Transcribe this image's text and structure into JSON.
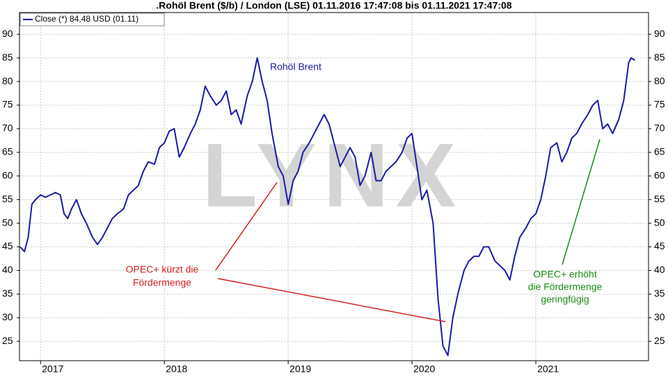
{
  "chart_data": {
    "type": "line",
    "title": ".Rohöl Brent ($/b) / London (LSE) 01.11.2016 17:47:08 bis 01.11.2021 17:47:08",
    "watermark": "LYNX",
    "annotations": [
      {
        "lines": [
          "Rohöl Brent"
        ],
        "color": "#1a1aa6"
      },
      {
        "lines": [
          "OPEC+ kürzt die",
          "Fördermenge"
        ],
        "color": "#d42020"
      },
      {
        "lines": [
          "OPEC+ erhöht",
          "die Fördermenge",
          "geringfügig"
        ],
        "color": "#1a8a1a"
      }
    ],
    "x": [
      2016.835,
      2016.87,
      2016.9,
      2016.93,
      2016.96,
      2017.0,
      2017.04,
      2017.08,
      2017.12,
      2017.16,
      2017.19,
      2017.22,
      2017.25,
      2017.29,
      2017.33,
      2017.37,
      2017.42,
      2017.46,
      2017.5,
      2017.54,
      2017.58,
      2017.62,
      2017.67,
      2017.71,
      2017.75,
      2017.79,
      2017.83,
      2017.87,
      2017.92,
      2017.96,
      2018.0,
      2018.04,
      2018.08,
      2018.12,
      2018.16,
      2018.21,
      2018.25,
      2018.29,
      2018.33,
      2018.37,
      2018.42,
      2018.46,
      2018.5,
      2018.54,
      2018.58,
      2018.62,
      2018.67,
      2018.71,
      2018.75,
      2018.79,
      2018.83,
      2018.87,
      2018.92,
      2018.96,
      2019.0,
      2019.04,
      2019.08,
      2019.12,
      2019.17,
      2019.21,
      2019.25,
      2019.29,
      2019.33,
      2019.37,
      2019.42,
      2019.46,
      2019.5,
      2019.54,
      2019.58,
      2019.62,
      2019.67,
      2019.71,
      2019.75,
      2019.79,
      2019.83,
      2019.87,
      2019.92,
      2019.96,
      2020.0,
      2020.04,
      2020.08,
      2020.12,
      2020.17,
      2020.21,
      2020.25,
      2020.29,
      2020.33,
      2020.37,
      2020.42,
      2020.46,
      2020.5,
      2020.54,
      2020.58,
      2020.62,
      2020.67,
      2020.71,
      2020.75,
      2020.79,
      2020.83,
      2020.87,
      2020.92,
      2020.96,
      2021.0,
      2021.04,
      2021.08,
      2021.12,
      2021.17,
      2021.21,
      2021.25,
      2021.29,
      2021.33,
      2021.37,
      2021.42,
      2021.46,
      2021.5,
      2021.54,
      2021.58,
      2021.62,
      2021.67,
      2021.71,
      2021.75,
      2021.77,
      2021.8
    ],
    "series": [
      {
        "name": "Close (*) 84,48 USD (01.11)",
        "color": "#1a1aa6",
        "values": [
          45,
          44,
          47,
          54,
          55,
          56,
          55.5,
          56,
          56.5,
          56,
          52,
          51,
          53,
          55,
          52,
          50,
          47,
          45.5,
          47,
          49,
          51,
          52,
          53,
          56,
          57,
          58,
          61,
          63,
          62.5,
          66,
          67,
          69.5,
          70,
          64,
          66,
          69,
          71,
          74,
          79,
          77,
          75,
          76,
          78,
          73,
          74,
          71,
          77,
          80,
          85,
          80,
          76,
          69,
          62,
          60,
          54,
          59,
          61,
          65,
          67,
          69,
          71,
          73,
          71,
          67,
          62,
          64,
          66,
          64,
          58,
          60,
          65,
          59,
          59,
          61,
          62,
          63,
          65,
          68,
          69,
          62,
          55,
          57,
          50,
          34,
          24,
          22,
          30,
          35,
          40,
          42,
          43,
          43,
          45,
          45,
          42,
          41,
          40,
          38,
          43,
          47,
          49,
          51,
          52,
          55,
          60,
          66,
          67,
          63,
          65,
          68,
          69,
          71,
          73,
          75,
          76,
          70,
          71,
          69,
          72,
          76,
          84,
          85,
          84.5
        ]
      }
    ],
    "xlim": [
      2016.83,
      2021.91
    ],
    "xticks": [
      2017,
      2018,
      2019,
      2020,
      2021
    ],
    "ylim": [
      20.9,
      94.6
    ],
    "yticks": [
      25,
      30,
      35,
      40,
      45,
      50,
      55,
      60,
      65,
      70,
      75,
      80,
      85,
      90
    ],
    "grid": true
  }
}
